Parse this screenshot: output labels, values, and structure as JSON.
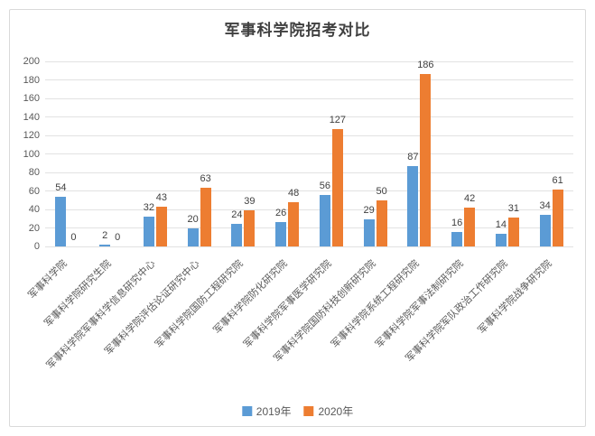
{
  "chart_data": {
    "type": "bar",
    "title": "军事科学院招考对比",
    "categories": [
      "军事科学院",
      "军事科学院研究生院",
      "军事科学院军事科学信息研究中心",
      "军事科学院评估论证研究中心",
      "军事科学院国防工程研究院",
      "军事科学院防化研究院",
      "军事科学院军事医学研究院",
      "军事科学院国防科技创新研究院",
      "军事科学院系统工程研究院",
      "军事科学院军事法制研究院",
      "军事科学院军队政治工作研究院",
      "军事科学院战争研究院"
    ],
    "series": [
      {
        "name": "2019年",
        "color": "#5b9bd5",
        "values": [
          54,
          2,
          32,
          20,
          24,
          26,
          56,
          29,
          87,
          16,
          14,
          34
        ]
      },
      {
        "name": "2020年",
        "color": "#ed7d31",
        "values": [
          0,
          0,
          43,
          63,
          39,
          48,
          127,
          50,
          186,
          42,
          31,
          61
        ]
      }
    ],
    "ylim": [
      0,
      200
    ],
    "ytick_step": 20,
    "yticks": [
      0,
      20,
      40,
      60,
      80,
      100,
      120,
      140,
      160,
      180,
      200
    ],
    "grid": true,
    "data_labels": true,
    "legend_position": "bottom",
    "xlabel": "",
    "ylabel": ""
  },
  "colors": {
    "grid": "#e2e2e2",
    "frame_border": "#d9d9d9",
    "title_text": "#404040",
    "axis_text": "#595959",
    "label_text": "#404040"
  }
}
